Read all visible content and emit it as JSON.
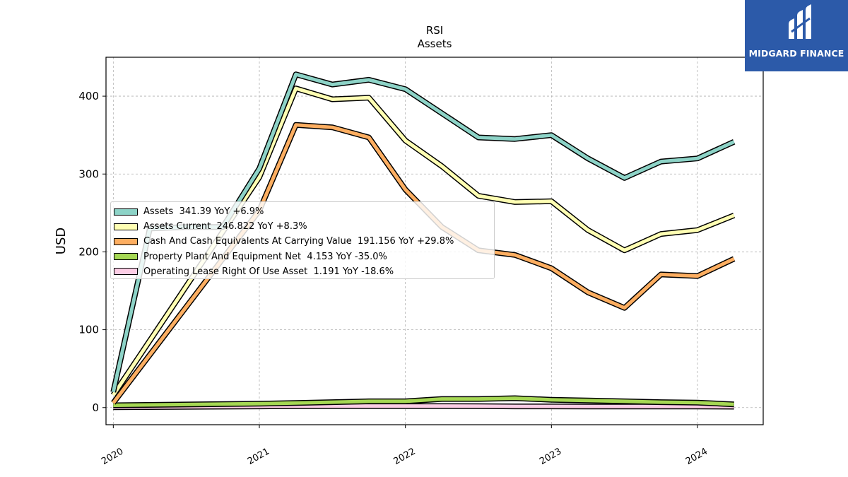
{
  "chart_data": {
    "type": "line",
    "title": "RSI",
    "subtitle": "Assets",
    "xlabel": "",
    "ylabel": "USD",
    "xlim": [
      2019.95,
      2024.45
    ],
    "ylim": [
      -22,
      450
    ],
    "x_ticks": [
      2020,
      2021,
      2022,
      2023,
      2024
    ],
    "x_tick_labels": [
      "2020",
      "2021",
      "2022",
      "2023",
      "2024"
    ],
    "y_ticks": [
      0,
      100,
      200,
      300,
      400
    ],
    "y_tick_labels": [
      "0",
      "100",
      "200",
      "300",
      "400"
    ],
    "grid": true,
    "legend_position": "center-left",
    "x": [
      2020.0,
      2020.25,
      2020.5,
      2020.75,
      2021.0,
      2021.25,
      2021.5,
      2021.75,
      2022.0,
      2022.25,
      2022.5,
      2022.75,
      2023.0,
      2023.25,
      2023.5,
      2023.75,
      2024.0,
      2024.25
    ],
    "series": [
      {
        "name": "Assets",
        "legend_label": "Assets  341.39 YoY +6.9%",
        "color": "#8dd3c7",
        "values": [
          20,
          230,
          232,
          232,
          307,
          428,
          415,
          421,
          409,
          378,
          347,
          345,
          350,
          320,
          295,
          316,
          320,
          341.39
        ]
      },
      {
        "name": "Assets Current",
        "legend_label": "Assets Current  246.822 YoY +8.3%",
        "color": "#ffffb3",
        "values": [
          16,
          null,
          null,
          null,
          296,
          410,
          396,
          398,
          343,
          310,
          272,
          264,
          265,
          228,
          202,
          223,
          228,
          246.822
        ]
      },
      {
        "name": "Cash And Cash Equivalents At Carrying Value",
        "legend_label": "Cash And Cash Equivalents At Carrying Value  191.156 YoY +29.8%",
        "color": "#fdae61",
        "values": [
          6,
          null,
          null,
          null,
          253,
          363,
          360,
          347,
          280,
          232,
          202,
          196,
          179,
          148,
          128,
          171,
          169,
          191.156
        ]
      },
      {
        "name": "Property Plant And Equipment Net",
        "legend_label": "Property Plant And Equipment Net  4.153 YoY -35.0%",
        "color": "#a6d854",
        "values": [
          3,
          null,
          null,
          null,
          5,
          6,
          7,
          8,
          8,
          11,
          11,
          12,
          10,
          9,
          8,
          7,
          6.4,
          4.153
        ]
      },
      {
        "name": "Operating Lease Right Of Use Asset",
        "legend_label": "Operating Lease Right Of Use Asset  1.191 YoY -18.6%",
        "color": "#fccde5",
        "values": [
          0.5,
          null,
          null,
          null,
          1.5,
          1.8,
          2,
          2,
          2,
          2,
          1.8,
          1.5,
          1.5,
          1.4,
          1.4,
          1.4,
          1.46,
          1.191
        ]
      }
    ]
  },
  "brand": {
    "name": "MIDGARD FINANCE",
    "background": "#2c5aa9"
  }
}
